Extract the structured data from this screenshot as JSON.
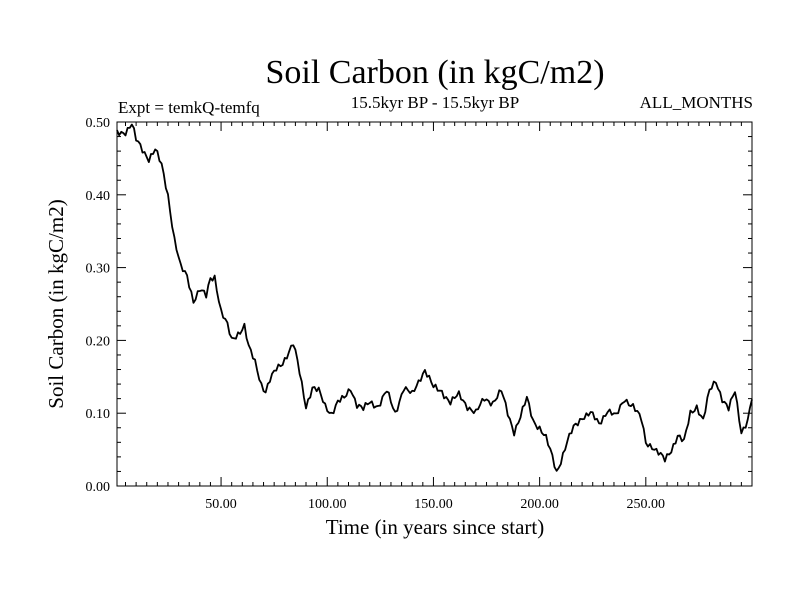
{
  "chart_data": {
    "type": "line",
    "title": "Soil Carbon (in kgC/m2)",
    "subtitle_left": "Expt = temkQ-temfq",
    "subtitle_center": "15.5kyr BP - 15.5kyr BP",
    "subtitle_right": "ALL_MONTHS",
    "xlabel": "Time (in years since start)",
    "ylabel": "Soil Carbon (in kgC/m2)",
    "xlim": [
      1,
      300
    ],
    "ylim": [
      0,
      0.5
    ],
    "x_ticks": [
      50,
      100,
      150,
      200,
      250
    ],
    "x_tick_labels": [
      "50.00",
      "100.00",
      "150.00",
      "200.00",
      "250.00"
    ],
    "y_ticks": [
      0,
      0.1,
      0.2,
      0.3,
      0.4,
      0.5
    ],
    "y_tick_labels": [
      "0.00",
      "0.10",
      "0.20",
      "0.30",
      "0.40",
      "0.50"
    ],
    "series": [
      {
        "name": "Soil Carbon",
        "color": "#000000",
        "x": [
          1,
          5,
          8,
          10,
          13,
          16,
          19,
          22,
          25,
          28,
          31,
          34,
          37,
          40,
          43,
          45,
          47,
          50,
          53,
          55,
          58,
          61,
          63,
          66,
          69,
          71,
          73,
          76,
          79,
          82,
          84,
          86,
          88,
          90,
          93,
          96,
          99,
          102,
          105,
          108,
          111,
          114,
          117,
          120,
          124,
          128,
          132,
          136,
          140,
          144,
          146,
          150,
          154,
          158,
          162,
          166,
          170,
          174,
          178,
          182,
          185,
          188,
          191,
          194,
          197,
          200,
          203,
          206,
          208,
          210,
          213,
          216,
          220,
          224,
          228,
          232,
          236,
          240,
          244,
          248,
          250,
          253,
          256,
          259,
          262,
          265,
          268,
          271,
          274,
          277,
          280,
          283,
          286,
          289,
          292,
          295,
          298,
          300
        ],
        "values": [
          0.485,
          0.487,
          0.497,
          0.475,
          0.462,
          0.45,
          0.462,
          0.44,
          0.4,
          0.34,
          0.3,
          0.288,
          0.255,
          0.27,
          0.26,
          0.285,
          0.288,
          0.24,
          0.22,
          0.2,
          0.21,
          0.22,
          0.19,
          0.17,
          0.14,
          0.13,
          0.145,
          0.16,
          0.17,
          0.185,
          0.195,
          0.17,
          0.14,
          0.11,
          0.135,
          0.13,
          0.11,
          0.1,
          0.115,
          0.12,
          0.135,
          0.112,
          0.105,
          0.115,
          0.11,
          0.13,
          0.1,
          0.135,
          0.125,
          0.15,
          0.16,
          0.135,
          0.13,
          0.115,
          0.125,
          0.11,
          0.1,
          0.12,
          0.115,
          0.13,
          0.1,
          0.075,
          0.095,
          0.12,
          0.09,
          0.08,
          0.065,
          0.04,
          0.02,
          0.035,
          0.06,
          0.08,
          0.095,
          0.1,
          0.085,
          0.105,
          0.095,
          0.12,
          0.11,
          0.09,
          0.06,
          0.055,
          0.045,
          0.035,
          0.05,
          0.07,
          0.06,
          0.1,
          0.11,
          0.09,
          0.13,
          0.145,
          0.12,
          0.105,
          0.13,
          0.075,
          0.09,
          0.12
        ]
      }
    ]
  }
}
